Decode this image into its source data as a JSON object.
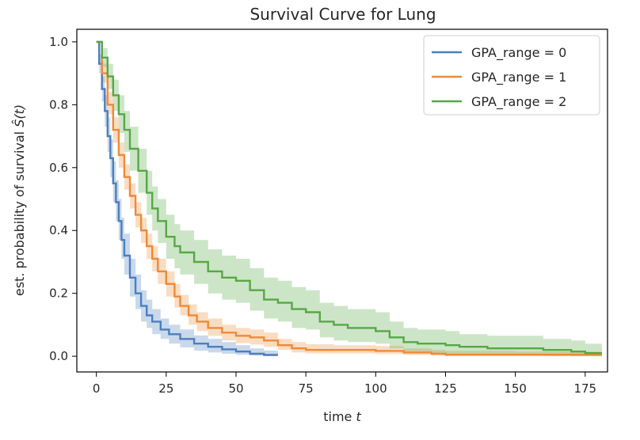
{
  "chart_data": {
    "type": "line",
    "title": "Survival Curve for Lung",
    "xlabel": "time ",
    "xlabel_var": "t",
    "ylabel": "est. probability of survival ",
    "ylabel_var": "Ŝ(t)",
    "xlim": [
      -7,
      183
    ],
    "ylim": [
      -0.05,
      1.04
    ],
    "xticks": [
      0,
      25,
      50,
      75,
      100,
      125,
      150,
      175
    ],
    "yticks": [
      0.0,
      0.2,
      0.4,
      0.6,
      0.8,
      1.0
    ],
    "grid": false,
    "legend_position": "top-right",
    "series": [
      {
        "name": "GPA_range = 0",
        "color": "#4c7fbd",
        "x": [
          0,
          1,
          2,
          3,
          4,
          5,
          6,
          7,
          8,
          9,
          10,
          12,
          14,
          16,
          18,
          20,
          23,
          26,
          30,
          35,
          40,
          45,
          50,
          55,
          60,
          65
        ],
        "y": [
          1.0,
          0.93,
          0.85,
          0.78,
          0.7,
          0.63,
          0.55,
          0.49,
          0.43,
          0.37,
          0.32,
          0.25,
          0.2,
          0.16,
          0.13,
          0.11,
          0.085,
          0.07,
          0.055,
          0.04,
          0.03,
          0.022,
          0.015,
          0.008,
          0.004,
          0.004
        ],
        "ci_low": [
          1.0,
          0.9,
          0.81,
          0.73,
          0.65,
          0.57,
          0.49,
          0.43,
          0.37,
          0.31,
          0.26,
          0.19,
          0.15,
          0.11,
          0.09,
          0.07,
          0.055,
          0.04,
          0.028,
          0.018,
          0.012,
          0.008,
          0.005,
          0.002,
          0.0,
          0.0
        ],
        "ci_high": [
          1.0,
          0.96,
          0.89,
          0.83,
          0.76,
          0.69,
          0.62,
          0.56,
          0.5,
          0.44,
          0.39,
          0.31,
          0.26,
          0.21,
          0.18,
          0.15,
          0.12,
          0.1,
          0.085,
          0.066,
          0.055,
          0.045,
          0.035,
          0.025,
          0.018,
          0.018
        ]
      },
      {
        "name": "GPA_range = 1",
        "color": "#ef8a35",
        "x": [
          0,
          2,
          4,
          6,
          8,
          10,
          12,
          14,
          16,
          18,
          20,
          22,
          25,
          28,
          30,
          33,
          36,
          40,
          45,
          50,
          55,
          60,
          65,
          70,
          75,
          80,
          85,
          100,
          110,
          120,
          125,
          150,
          175,
          181
        ],
        "y": [
          1.0,
          0.9,
          0.8,
          0.72,
          0.64,
          0.57,
          0.51,
          0.45,
          0.4,
          0.35,
          0.31,
          0.27,
          0.23,
          0.19,
          0.16,
          0.13,
          0.11,
          0.09,
          0.075,
          0.065,
          0.06,
          0.05,
          0.035,
          0.025,
          0.02,
          0.02,
          0.02,
          0.017,
          0.012,
          0.008,
          0.005,
          0.005,
          0.005,
          0.005
        ],
        "ci_low": [
          1.0,
          0.87,
          0.77,
          0.68,
          0.6,
          0.53,
          0.47,
          0.41,
          0.36,
          0.31,
          0.27,
          0.23,
          0.19,
          0.155,
          0.13,
          0.1,
          0.08,
          0.065,
          0.05,
          0.042,
          0.037,
          0.03,
          0.02,
          0.012,
          0.009,
          0.009,
          0.009,
          0.007,
          0.004,
          0.002,
          0.0,
          0.0,
          0.0,
          0.0
        ],
        "ci_high": [
          1.0,
          0.93,
          0.84,
          0.76,
          0.68,
          0.61,
          0.55,
          0.49,
          0.44,
          0.39,
          0.35,
          0.31,
          0.27,
          0.23,
          0.195,
          0.165,
          0.14,
          0.12,
          0.1,
          0.09,
          0.085,
          0.075,
          0.055,
          0.045,
          0.038,
          0.038,
          0.035,
          0.032,
          0.025,
          0.02,
          0.017,
          0.015,
          0.015,
          0.015
        ]
      },
      {
        "name": "GPA_range = 2",
        "color": "#56a845",
        "x": [
          0,
          2,
          4,
          6,
          8,
          10,
          12,
          15,
          18,
          20,
          22,
          25,
          28,
          30,
          35,
          40,
          45,
          50,
          55,
          60,
          65,
          70,
          75,
          80,
          85,
          90,
          95,
          100,
          105,
          110,
          115,
          120,
          125,
          130,
          135,
          140,
          150,
          160,
          170,
          175,
          181
        ],
        "y": [
          1.0,
          0.95,
          0.89,
          0.83,
          0.77,
          0.72,
          0.66,
          0.59,
          0.52,
          0.47,
          0.43,
          0.38,
          0.35,
          0.33,
          0.3,
          0.27,
          0.25,
          0.24,
          0.21,
          0.18,
          0.17,
          0.15,
          0.14,
          0.11,
          0.1,
          0.09,
          0.09,
          0.08,
          0.06,
          0.045,
          0.04,
          0.04,
          0.035,
          0.03,
          0.03,
          0.025,
          0.025,
          0.02,
          0.015,
          0.01,
          0.01
        ],
        "ci_low": [
          1.0,
          0.92,
          0.85,
          0.78,
          0.71,
          0.65,
          0.59,
          0.52,
          0.45,
          0.4,
          0.36,
          0.31,
          0.28,
          0.26,
          0.23,
          0.2,
          0.18,
          0.17,
          0.145,
          0.12,
          0.11,
          0.09,
          0.085,
          0.06,
          0.05,
          0.045,
          0.045,
          0.04,
          0.025,
          0.015,
          0.01,
          0.01,
          0.008,
          0.005,
          0.005,
          0.003,
          0.003,
          0.001,
          0.0,
          0.0,
          0.0
        ],
        "ci_high": [
          1.0,
          0.98,
          0.93,
          0.88,
          0.83,
          0.78,
          0.73,
          0.66,
          0.59,
          0.54,
          0.5,
          0.45,
          0.42,
          0.4,
          0.37,
          0.34,
          0.32,
          0.31,
          0.28,
          0.25,
          0.24,
          0.22,
          0.21,
          0.17,
          0.16,
          0.15,
          0.15,
          0.14,
          0.11,
          0.09,
          0.085,
          0.085,
          0.08,
          0.07,
          0.07,
          0.065,
          0.065,
          0.055,
          0.05,
          0.04,
          0.04
        ]
      }
    ]
  }
}
